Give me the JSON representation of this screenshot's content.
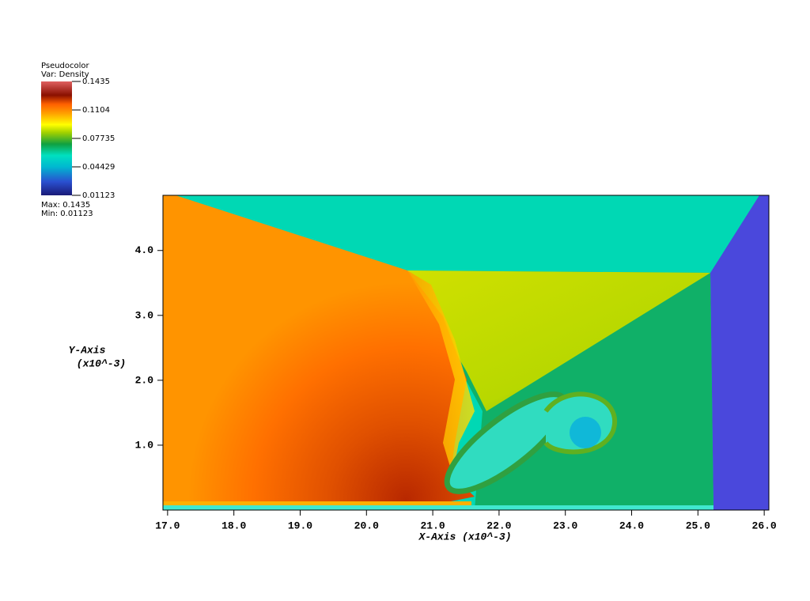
{
  "chart_data": {
    "type": "pseudocolor",
    "legend_title": "Pseudocolor",
    "variable": "Var: Density",
    "max_text": "Max:  0.1435",
    "min_text": "Min:  0.01123",
    "clim": [
      0.01123,
      0.1435
    ],
    "cticks": [
      0.1435,
      0.1104,
      0.07735,
      0.04429,
      0.01123
    ],
    "x_label": "X-Axis (x10^-3)",
    "y_label": [
      "Y-Axis",
      "(x10^-3)"
    ],
    "xlim": [
      16.93,
      26.07
    ],
    "ylim": [
      0,
      4.85
    ],
    "xticks": [
      {
        "value": 17,
        "label": "17.0"
      },
      {
        "value": 18,
        "label": "18.0"
      },
      {
        "value": 19,
        "label": "19.0"
      },
      {
        "value": 20,
        "label": "20.0"
      },
      {
        "value": 21,
        "label": "21.0"
      },
      {
        "value": 22,
        "label": "22.0"
      },
      {
        "value": 23,
        "label": "23.0"
      },
      {
        "value": 24,
        "label": "24.0"
      },
      {
        "value": 25,
        "label": "25.0"
      },
      {
        "value": 26,
        "label": "26.0"
      }
    ],
    "yticks": [
      {
        "value": 1,
        "label": "1.0"
      },
      {
        "value": 2,
        "label": "2.0"
      },
      {
        "value": 3,
        "label": "3.0"
      },
      {
        "value": 4,
        "label": "4.0"
      }
    ]
  }
}
